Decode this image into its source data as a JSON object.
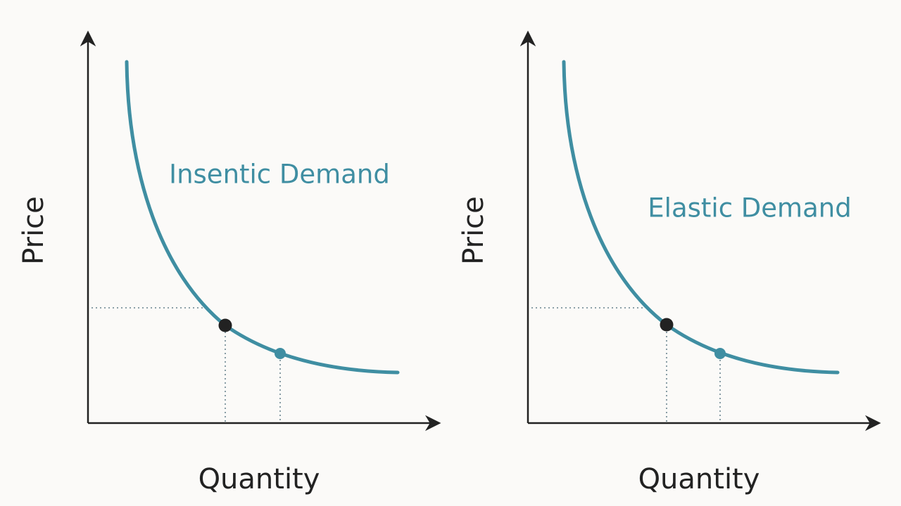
{
  "panels": [
    {
      "y_label": "Price",
      "x_label": "Quantity",
      "curve_label": "Insentic Demand"
    },
    {
      "y_label": "Price",
      "x_label": "Quantity",
      "curve_label": "Elastic Demand"
    }
  ]
}
